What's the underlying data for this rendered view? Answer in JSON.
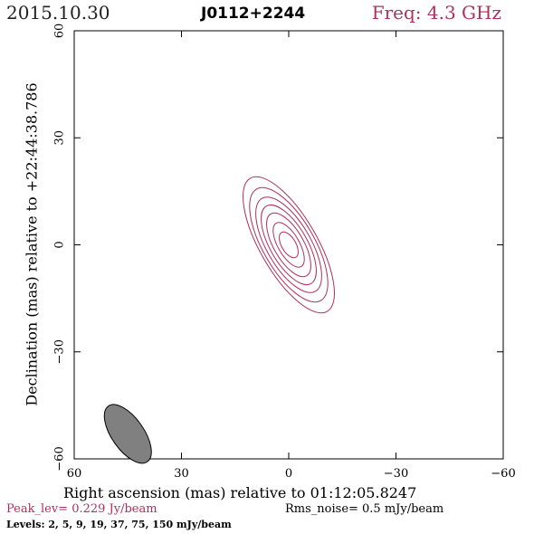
{
  "header": {
    "date": "2015.10.30",
    "source": "J0112+2244",
    "freq": "Freq: 4.3 GHz"
  },
  "footer": {
    "xlabel": "Right ascension (mas) relative to 01:12:05.8247",
    "peak": "Peak_lev=  0.229 Jy/beam",
    "rms": "Rms_noise=  0.5 mJy/beam",
    "levels": "Levels:   2,   5,   9,  19,  37,  75, 150 mJy/beam"
  },
  "colors": {
    "accent": "#b0305a",
    "contour": "#b0305a",
    "beam_fill": "#808080"
  },
  "chart_data": {
    "type": "contour",
    "xlabel": "Right ascension (mas) relative to 01:12:05.8247",
    "ylabel": "Declination (mas) relative to +22:44:38.786",
    "xlim": [
      60,
      -60
    ],
    "ylim": [
      -60,
      60
    ],
    "x_ticks": [
      60,
      30,
      0,
      -30,
      -60
    ],
    "x_tick_labels": [
      "60",
      "30",
      "0",
      "−30",
      "−60"
    ],
    "y_ticks": [
      -60,
      -30,
      0,
      30,
      60
    ],
    "y_tick_labels": [
      "−60",
      "−30",
      "0",
      "30",
      "60"
    ],
    "contour_levels_mJy": [
      2,
      5,
      9,
      19,
      37,
      75,
      150
    ],
    "peak_Jy_per_beam": 0.229,
    "rms_noise_mJy_per_beam": 0.5,
    "source_center": [
      0,
      0
    ],
    "contours": [
      {
        "level": 2,
        "semi_major": 21.5,
        "semi_minor": 8.0,
        "pa_deg": 150
      },
      {
        "level": 5,
        "semi_major": 18.0,
        "semi_minor": 7.2,
        "pa_deg": 150
      },
      {
        "level": 9,
        "semi_major": 15.0,
        "semi_minor": 6.2,
        "pa_deg": 150
      },
      {
        "level": 19,
        "semi_major": 12.5,
        "semi_minor": 5.2,
        "pa_deg": 150
      },
      {
        "level": 37,
        "semi_major": 10.0,
        "semi_minor": 4.2,
        "pa_deg": 150
      },
      {
        "level": 75,
        "semi_major": 7.0,
        "semi_minor": 3.0,
        "pa_deg": 150
      },
      {
        "level": 150,
        "semi_major": 4.0,
        "semi_minor": 2.0,
        "pa_deg": 150
      }
    ],
    "beam": {
      "x": 45,
      "y": -53,
      "major": 9.5,
      "minor": 4.5,
      "pa_deg": 145
    }
  }
}
